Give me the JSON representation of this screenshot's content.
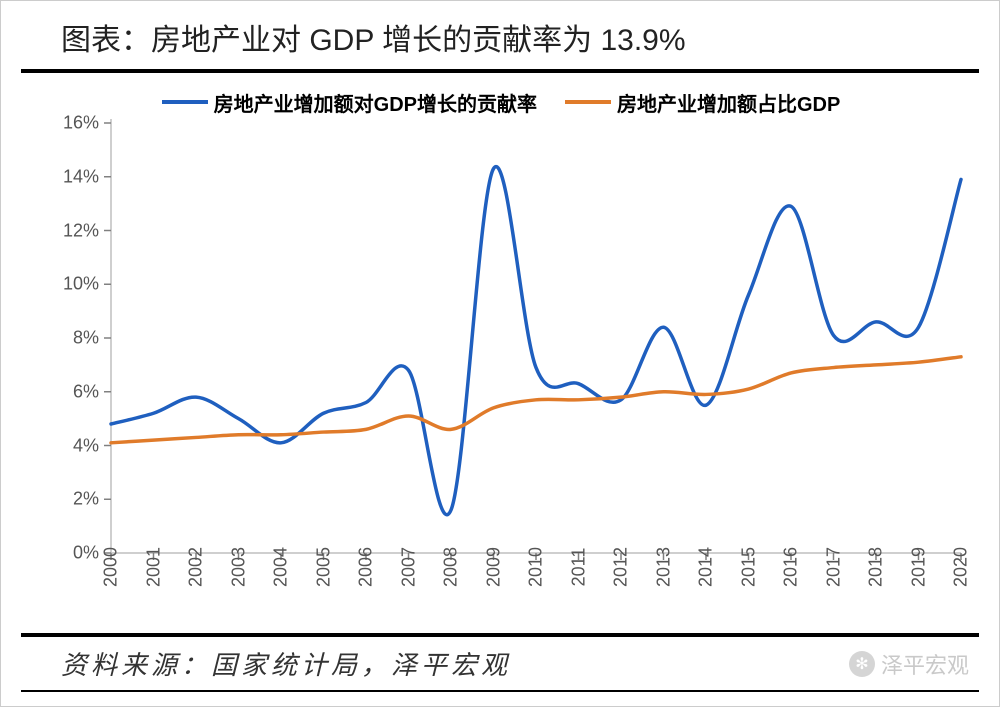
{
  "title": "图表：房地产业对 GDP 增长的贡献率为 13.9%",
  "source": "资料来源：国家统计局，泽平宏观",
  "watermark": "泽平宏观",
  "chart": {
    "type": "line",
    "background_color": "#ffffff",
    "axis_color": "#bfbfbf",
    "tick_color": "#808080",
    "tick_font_size": 18,
    "legend_font_size": 20,
    "line_width": 3.5,
    "ylim": [
      0,
      16
    ],
    "ytick_step": 2,
    "yticks": [
      0,
      2,
      4,
      6,
      8,
      10,
      12,
      14,
      16
    ],
    "ytick_suffix": "%",
    "x_categories": [
      "2000",
      "2001",
      "2002",
      "2003",
      "2004",
      "2005",
      "2006",
      "2007",
      "2008",
      "2009",
      "2010",
      "2011",
      "2012",
      "2013",
      "2014",
      "2015",
      "2016",
      "2017",
      "2018",
      "2019",
      "2020"
    ],
    "series": [
      {
        "name": "房地产业增加额对GDP增长的贡献率",
        "color": "#1f5fbf",
        "values": [
          4.8,
          5.2,
          5.8,
          5.0,
          4.1,
          5.2,
          5.6,
          6.8,
          1.6,
          14.3,
          6.9,
          6.3,
          5.7,
          8.4,
          5.5,
          9.6,
          12.9,
          8.1,
          8.6,
          8.4,
          13.9
        ]
      },
      {
        "name": "房地产业增加额占比GDP",
        "color": "#e07b2a",
        "values": [
          4.1,
          4.2,
          4.3,
          4.4,
          4.4,
          4.5,
          4.6,
          5.1,
          4.6,
          5.4,
          5.7,
          5.7,
          5.8,
          6.0,
          5.9,
          6.1,
          6.7,
          6.9,
          7.0,
          7.1,
          7.3
        ]
      }
    ]
  }
}
